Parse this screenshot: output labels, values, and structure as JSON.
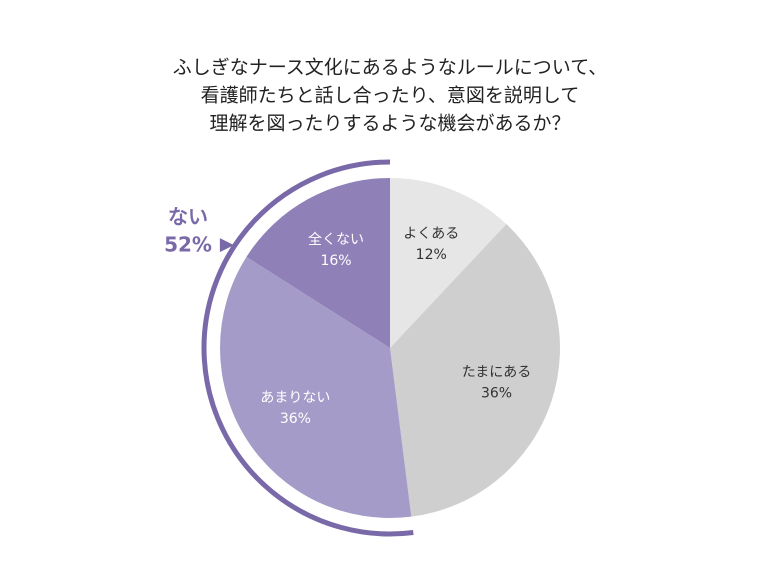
{
  "chart_data": {
    "type": "pie",
    "title": [
      "ふしぎなナース文化にあるようなルールについて、",
      "看護師たちと話し合ったり、意図を説明して",
      "理解を図ったりするような機会があるか？"
    ],
    "categories": [
      "よくある",
      "たまにある",
      "あまりない",
      "全くない"
    ],
    "values": [
      12,
      36,
      36,
      16
    ],
    "value_labels": [
      "12%",
      "36%",
      "36%",
      "16%"
    ],
    "colors": [
      "#e6e6e6",
      "#cfcfcf",
      "#a59bc8",
      "#8f80b8"
    ],
    "annotation": {
      "text": "ない",
      "value": 52,
      "value_label": "52%",
      "color": "#7a69a8"
    }
  }
}
